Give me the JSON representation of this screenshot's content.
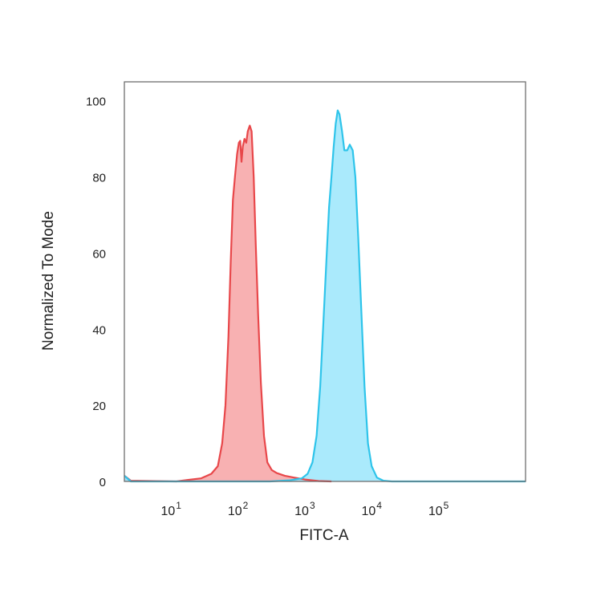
{
  "chart_data": {
    "type": "area",
    "title": "",
    "xlabel": "FITC-A",
    "ylabel": "Normalized To Mode",
    "x_scale": "log",
    "xlim": [
      2,
      2000000
    ],
    "ylim": [
      0,
      105
    ],
    "grid": false,
    "legend": "none",
    "x_ticks": [
      {
        "base": "10",
        "exp": "1",
        "value": 10
      },
      {
        "base": "10",
        "exp": "2",
        "value": 100
      },
      {
        "base": "10",
        "exp": "3",
        "value": 1000
      },
      {
        "base": "10",
        "exp": "4",
        "value": 10000
      },
      {
        "base": "10",
        "exp": "5",
        "value": 100000
      }
    ],
    "y_ticks": [
      {
        "label": "0",
        "value": 0
      },
      {
        "label": "20",
        "value": 20
      },
      {
        "label": "40",
        "value": 40
      },
      {
        "label": "60",
        "value": 60
      },
      {
        "label": "80",
        "value": 80
      },
      {
        "label": "100",
        "value": 100
      }
    ],
    "series": [
      {
        "color": "#e8474a",
        "fill": "#f7a3a4",
        "points": [
          [
            2,
            1.5
          ],
          [
            2.5,
            0.2
          ],
          [
            12,
            0
          ],
          [
            18,
            0.4
          ],
          [
            28,
            0.8
          ],
          [
            40,
            2
          ],
          [
            50,
            4
          ],
          [
            58,
            10
          ],
          [
            65,
            20
          ],
          [
            72,
            38
          ],
          [
            78,
            58
          ],
          [
            84,
            74
          ],
          [
            90,
            80
          ],
          [
            97,
            86
          ],
          [
            103,
            89
          ],
          [
            108,
            89.5
          ],
          [
            113,
            84
          ],
          [
            118,
            88
          ],
          [
            125,
            90
          ],
          [
            133,
            89
          ],
          [
            140,
            92
          ],
          [
            150,
            93.5
          ],
          [
            160,
            92
          ],
          [
            172,
            80
          ],
          [
            185,
            62
          ],
          [
            200,
            44
          ],
          [
            220,
            26
          ],
          [
            245,
            12
          ],
          [
            275,
            5
          ],
          [
            320,
            3
          ],
          [
            380,
            2.2
          ],
          [
            500,
            1.5
          ],
          [
            700,
            1
          ],
          [
            1000,
            0.5
          ],
          [
            1600,
            0.1
          ],
          [
            2500,
            0
          ]
        ]
      },
      {
        "color": "#2ec4ea",
        "fill": "#9be6fb",
        "points": [
          [
            2,
            1.5
          ],
          [
            2.5,
            0
          ],
          [
            300,
            0
          ],
          [
            600,
            0.3
          ],
          [
            900,
            0.8
          ],
          [
            1100,
            2
          ],
          [
            1300,
            5
          ],
          [
            1500,
            12
          ],
          [
            1700,
            25
          ],
          [
            1900,
            42
          ],
          [
            2100,
            58
          ],
          [
            2300,
            72
          ],
          [
            2500,
            80
          ],
          [
            2700,
            88
          ],
          [
            2900,
            94
          ],
          [
            3100,
            97.5
          ],
          [
            3300,
            96.5
          ],
          [
            3600,
            92
          ],
          [
            3900,
            87
          ],
          [
            4300,
            87
          ],
          [
            4700,
            88.5
          ],
          [
            5200,
            87
          ],
          [
            5700,
            80
          ],
          [
            6300,
            64
          ],
          [
            7000,
            45
          ],
          [
            7800,
            25
          ],
          [
            8800,
            10
          ],
          [
            10000,
            4
          ],
          [
            12000,
            1
          ],
          [
            15000,
            0.2
          ],
          [
            20000,
            0
          ],
          [
            2000000,
            0
          ]
        ]
      }
    ]
  }
}
